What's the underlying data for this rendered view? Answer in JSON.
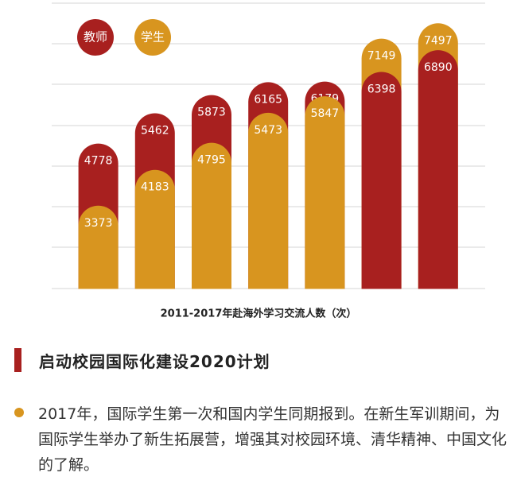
{
  "chart_data": {
    "type": "pill-bar",
    "xlabel": "2011-2017年赴海外学习交流人数（次）",
    "series": [
      {
        "name": "教师",
        "color": "#a8201f",
        "values": [
          4778,
          5462,
          5873,
          6165,
          6179,
          6398,
          6890
        ]
      },
      {
        "name": "学生",
        "color": "#d8951f",
        "values": [
          3373,
          4183,
          4795,
          5473,
          5847,
          7149,
          7497
        ]
      }
    ],
    "ylim": [
      1500,
      7700
    ]
  },
  "section": {
    "heading": "启动校园国际化建设2020计划",
    "bullet": "2017年，国际学生第一次和国内学生同期报到。在新生军训期间，为国际学生举办了新生拓展营，增强其对校园环境、清华精神、中国文化的了解。"
  }
}
